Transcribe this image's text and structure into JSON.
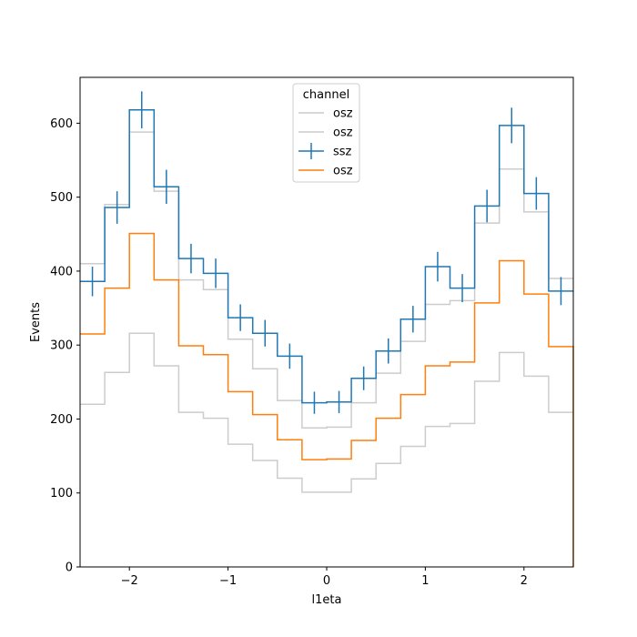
{
  "chart_data": {
    "type": "line",
    "xlabel": "l1eta",
    "ylabel": "Events",
    "xlim": [
      -2.5,
      2.5
    ],
    "ylim": [
      0,
      662
    ],
    "xticks": [
      -2,
      -1,
      0,
      1,
      2
    ],
    "yticks": [
      0,
      100,
      200,
      300,
      400,
      500,
      600
    ],
    "bin_edges": [
      -2.5,
      -2.25,
      -2.0,
      -1.75,
      -1.5,
      -1.25,
      -1.0,
      -0.75,
      -0.5,
      -0.25,
      0.0,
      0.25,
      0.5,
      0.75,
      1.0,
      1.25,
      1.5,
      1.75,
      2.0,
      2.25,
      2.5
    ],
    "grid": false,
    "legend": {
      "title": "channel",
      "location": "top-center",
      "entries": [
        "osz",
        "osz",
        "ssz",
        "osz"
      ]
    },
    "series": [
      {
        "name": "osz",
        "style": "step",
        "color": "#cccccc",
        "values": [
          410,
          490,
          588,
          508,
          388,
          375,
          308,
          268,
          225,
          188,
          189,
          222,
          262,
          305,
          355,
          360,
          465,
          538,
          480,
          390
        ]
      },
      {
        "name": "osz",
        "style": "step",
        "color": "#cccccc",
        "values": [
          220,
          263,
          316,
          272,
          209,
          201,
          166,
          144,
          120,
          101,
          101,
          119,
          140,
          163,
          190,
          194,
          251,
          290,
          258,
          209
        ]
      },
      {
        "name": "ssz",
        "style": "step-errorbar",
        "color": "#1f77b4",
        "values": [
          386,
          486,
          618,
          514,
          417,
          397,
          337,
          316,
          285,
          222,
          223,
          255,
          292,
          335,
          406,
          377,
          488,
          597,
          505,
          373
        ],
        "errors": [
          20,
          22,
          25,
          23,
          20,
          20,
          18,
          18,
          17,
          15,
          15,
          16,
          17,
          18,
          20,
          19,
          22,
          24,
          22,
          19
        ]
      },
      {
        "name": "osz",
        "style": "step",
        "color": "#ff7f0e",
        "values": [
          315,
          377,
          451,
          388,
          299,
          287,
          237,
          206,
          172,
          145,
          146,
          171,
          201,
          233,
          272,
          277,
          357,
          414,
          369,
          298
        ]
      }
    ]
  }
}
